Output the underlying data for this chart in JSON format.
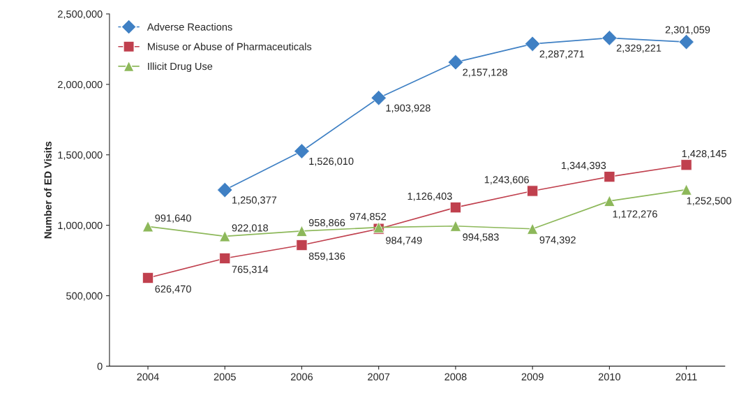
{
  "chart_data": {
    "type": "line",
    "ylabel": "Number of ED Visits",
    "categories": [
      "2004",
      "2005",
      "2006",
      "2007",
      "2008",
      "2009",
      "2010",
      "2011"
    ],
    "series": [
      {
        "name": "Adverse Reactions",
        "color": "#3f80c4",
        "marker": "diamond",
        "values": [
          null,
          1250377,
          1526010,
          1903928,
          2157128,
          2287271,
          2329221,
          2301059
        ],
        "value_labels": [
          null,
          "1,250,377",
          "1,526,010",
          "1,903,928",
          "2,157,128",
          "2,287,271",
          "2,329,221",
          "2,301,059"
        ]
      },
      {
        "name": "Misuse or Abuse of Pharmaceuticals",
        "color": "#c0404e",
        "marker": "square",
        "values": [
          626470,
          765314,
          859136,
          974852,
          1126403,
          1243606,
          1344393,
          1428145
        ],
        "value_labels": [
          "626,470",
          "765,314",
          "859,136",
          "974,852",
          "1,126,403",
          "1,243,606",
          "1,344,393",
          "1,428,145"
        ]
      },
      {
        "name": "Illicit Drug Use",
        "color": "#8db85a",
        "marker": "triangle",
        "values": [
          991640,
          922018,
          958866,
          984749,
          994583,
          974392,
          1172276,
          1252500
        ],
        "value_labels": [
          "991,640",
          "922,018",
          "958,866",
          "984,749",
          "994,583",
          "974,392",
          "1,172,276",
          "1,252,500"
        ]
      }
    ],
    "ylim": [
      0,
      2500000
    ],
    "yticks": [
      {
        "value": 0,
        "label": "0"
      },
      {
        "value": 500000,
        "label": "500,000"
      },
      {
        "value": 1000000,
        "label": "1,000,000"
      },
      {
        "value": 1500000,
        "label": "1,500,000"
      },
      {
        "value": 2000000,
        "label": "2,000,000"
      },
      {
        "value": 2500000,
        "label": "2,500,000"
      }
    ],
    "legend": "top left",
    "grid": false
  }
}
